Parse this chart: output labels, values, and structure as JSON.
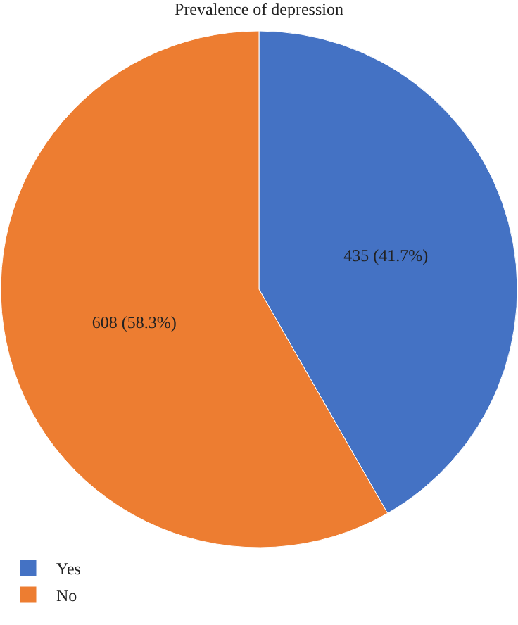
{
  "chart_data": {
    "type": "pie",
    "title": "Prevalence of depression",
    "categories": [
      "Yes",
      "No"
    ],
    "values": [
      435,
      608
    ],
    "colors": [
      "#4472c4",
      "#ed7d31"
    ],
    "value_labels": [
      "435 (41.7%)",
      "608 (58.3%)"
    ],
    "legend": "bottom left"
  }
}
